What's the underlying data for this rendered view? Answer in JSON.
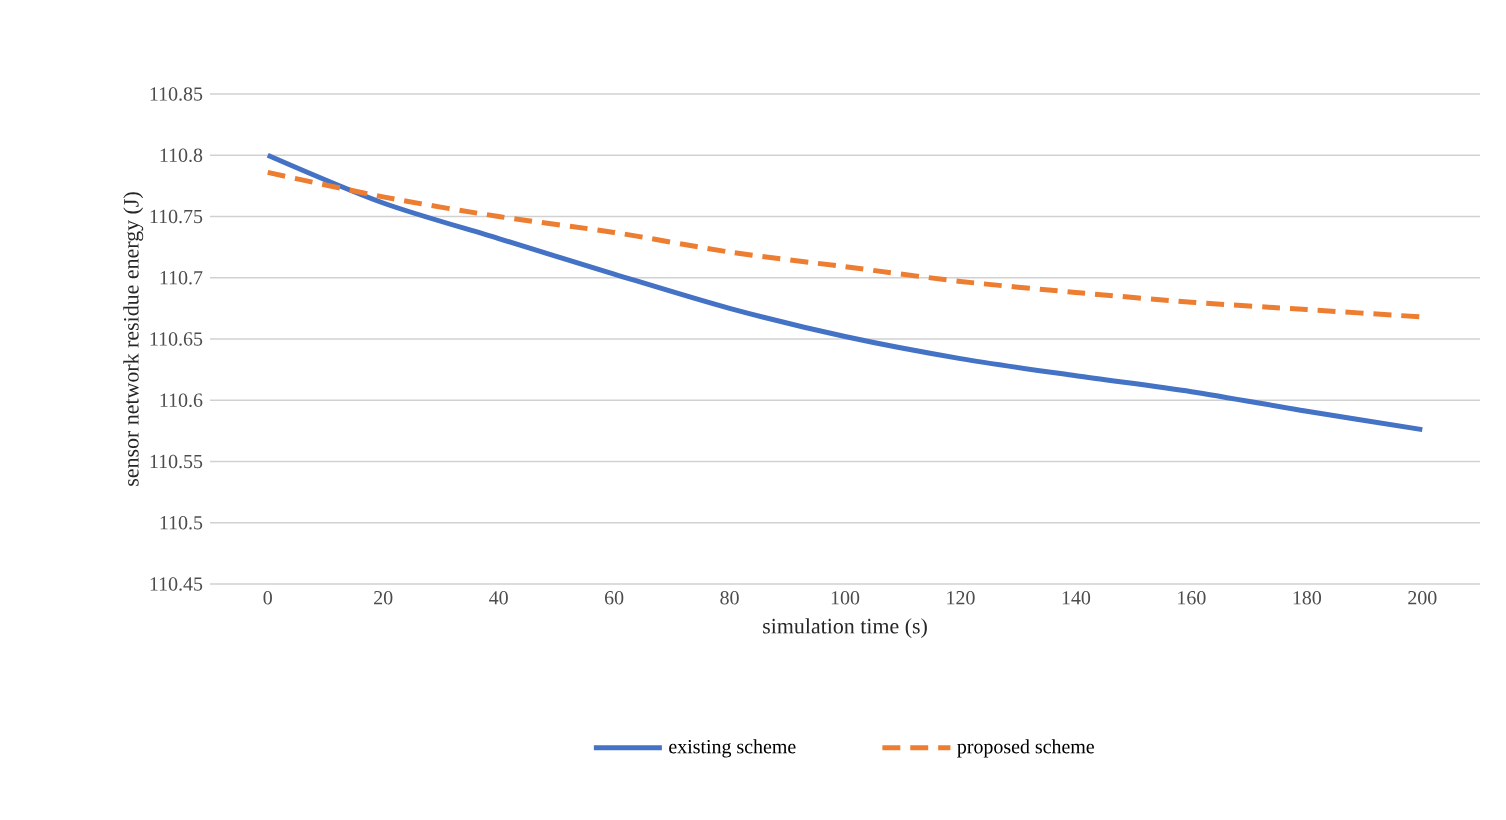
{
  "chart_data": {
    "type": "line",
    "xlabel": "simulation time (s)",
    "ylabel": "sensor network residue energy (J)",
    "categories": [
      "0",
      "20",
      "40",
      "60",
      "80",
      "100",
      "120",
      "140",
      "160",
      "180",
      "200"
    ],
    "series": [
      {
        "name": "existing scheme",
        "color": "#4472c4",
        "line_style": "solid",
        "values": [
          110.8,
          110.761,
          110.732,
          110.703,
          110.675,
          110.652,
          110.634,
          110.62,
          110.607,
          110.591,
          110.576
        ]
      },
      {
        "name": "proposed scheme",
        "color": "#ed7d31",
        "line_style": "dashed",
        "values": [
          110.786,
          110.766,
          110.75,
          110.737,
          110.721,
          110.709,
          110.697,
          110.688,
          110.68,
          110.674,
          110.668
        ]
      }
    ],
    "ylim": [
      110.45,
      110.85
    ],
    "yticks": [
      110.45,
      110.5,
      110.55,
      110.6,
      110.65,
      110.7,
      110.75,
      110.8,
      110.85
    ],
    "grid": "y",
    "legend": "bottom",
    "marker": "none"
  }
}
